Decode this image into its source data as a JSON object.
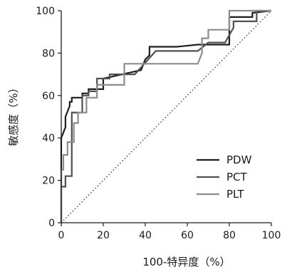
{
  "chart_data": {
    "type": "line",
    "title": "",
    "xlabel": "100-特异度（%）",
    "ylabel": "敏感度（%）",
    "xlim": [
      0,
      100
    ],
    "ylim": [
      0,
      100
    ],
    "xticks": [
      "0",
      "20",
      "40",
      "60",
      "80",
      "100"
    ],
    "yticks": [
      "0",
      "20",
      "40",
      "60",
      "80",
      "100"
    ],
    "grid": false,
    "legend_position": "bottom-right",
    "reference_line": {
      "style": "dotted",
      "x": [
        0,
        100
      ],
      "y": [
        0,
        100
      ]
    },
    "series": [
      {
        "name": "PDW",
        "color": "#1e1e1e",
        "x": [
          0,
          0,
          2,
          2,
          4,
          4,
          5,
          5,
          10,
          10,
          13,
          13,
          20,
          20,
          38,
          40,
          42,
          42,
          55,
          65,
          80,
          80,
          91,
          91,
          100
        ],
        "y": [
          0,
          40,
          45,
          50,
          55,
          57,
          57,
          59,
          59,
          61,
          61,
          63,
          63,
          68,
          72,
          77,
          79,
          83,
          83,
          84,
          84,
          97,
          97,
          99,
          100
        ]
      },
      {
        "name": "PCT",
        "color": "#505050",
        "x": [
          0,
          0,
          2,
          2,
          5,
          5,
          10,
          10,
          13,
          13,
          17,
          17,
          23,
          23,
          35,
          45,
          65,
          70,
          78,
          82,
          82,
          93,
          93,
          100
        ],
        "y": [
          0,
          17,
          17,
          22,
          22,
          52,
          52,
          60,
          60,
          62,
          62,
          68,
          68,
          70,
          70,
          81,
          81,
          85,
          85,
          92,
          95,
          95,
          100,
          100
        ]
      },
      {
        "name": "PLT",
        "color": "#8c8c8c",
        "x": [
          0,
          0,
          1,
          1,
          3,
          3,
          6,
          6,
          8,
          8,
          12,
          12,
          17,
          17,
          30,
          30,
          45,
          65,
          67,
          67,
          70,
          70,
          80,
          80,
          100
        ],
        "y": [
          0,
          25,
          25,
          32,
          32,
          38,
          38,
          47,
          47,
          52,
          52,
          59,
          59,
          65,
          65,
          75,
          75,
          75,
          80,
          87,
          87,
          91,
          91,
          100,
          100
        ]
      }
    ]
  }
}
